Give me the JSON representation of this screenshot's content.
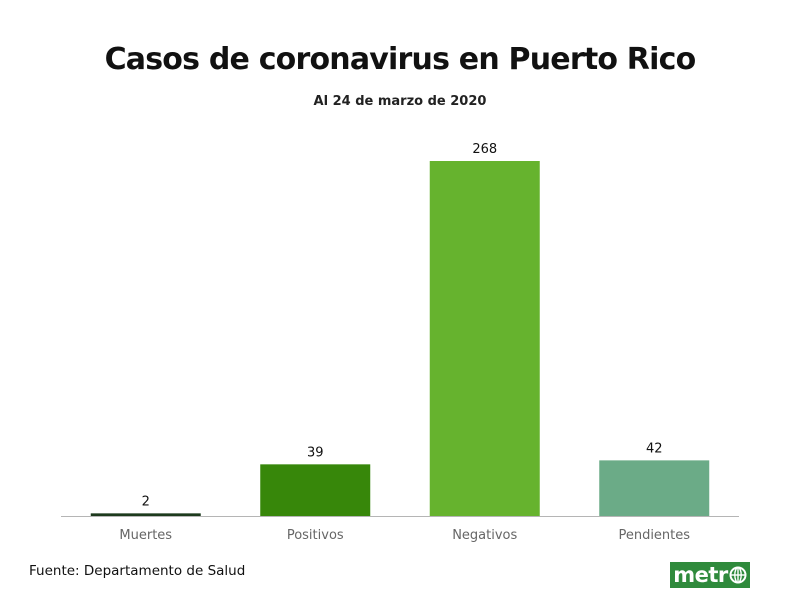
{
  "chart_data": {
    "type": "bar",
    "title": "Casos de coronavirus en Puerto Rico",
    "subtitle": "Al 24 de marzo de 2020",
    "categories": [
      "Muertes",
      "Positivos",
      "Negativos",
      "Pendientes"
    ],
    "values": [
      2,
      39,
      268,
      42
    ],
    "value_labels": [
      "2",
      "39",
      "268",
      "42"
    ],
    "colors": [
      "#1d3a1d",
      "#37870a",
      "#66b32e",
      "#6bab87"
    ],
    "ylim": [
      0,
      268
    ],
    "grid": false,
    "legend": "none",
    "xlabel": "",
    "ylabel": ""
  },
  "footer": {
    "source": "Fuente: Departamento de Salud",
    "logo_text": "metr",
    "logo_icon": "globe-icon",
    "logo_color": "#2f8a3c"
  }
}
